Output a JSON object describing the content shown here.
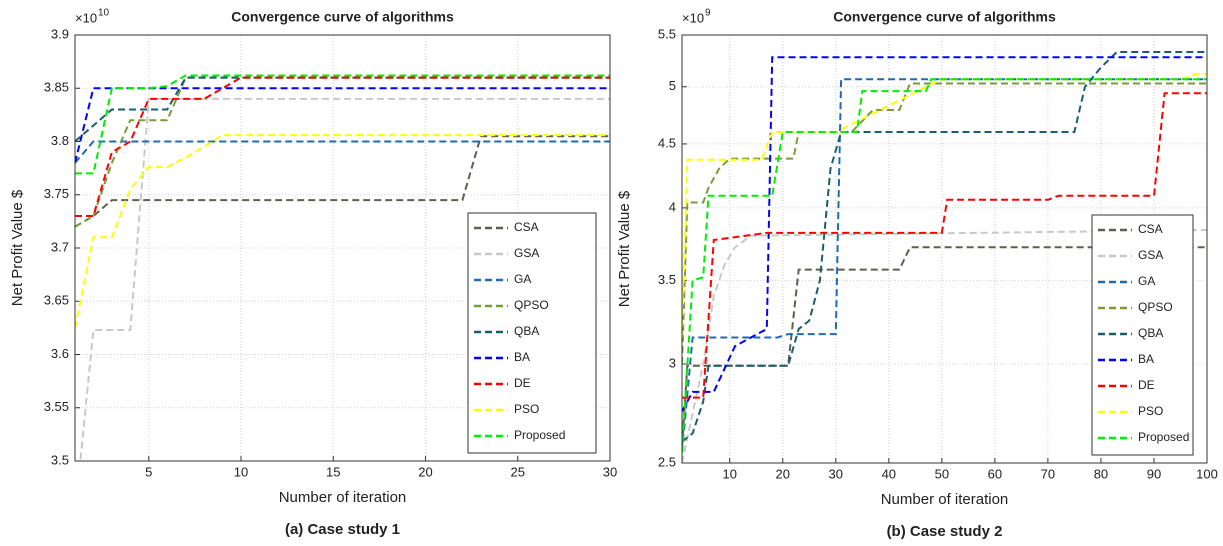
{
  "chart_data": [
    {
      "type": "line",
      "step_style": "dashed",
      "title": "Convergence curve of algorithms",
      "xlabel": "Number of iteration",
      "ylabel": "Net Profit Value $",
      "y_multiplier": {
        "base": "×10",
        "exponent": "10"
      },
      "caption": "(a)  Case study 1",
      "xlim": [
        1,
        30
      ],
      "xticks": [
        5,
        10,
        15,
        20,
        25,
        30
      ],
      "ylim": [
        3.5,
        3.9
      ],
      "yticks": [
        3.5,
        3.55,
        3.6,
        3.65,
        3.7,
        3.75,
        3.8,
        3.85,
        3.9
      ],
      "yscale": "linear",
      "grid": true,
      "legend": "lower right",
      "series": [
        {
          "name": "CSA",
          "color": "#5f5f4f",
          "x": [
            1,
            2,
            3,
            22,
            23,
            30
          ],
          "values": [
            3.72,
            3.73,
            3.745,
            3.745,
            3.805,
            3.805
          ]
        },
        {
          "name": "GSA",
          "color": "#c8c8c8",
          "x": [
            1,
            2,
            4,
            5,
            30
          ],
          "values": [
            3.45,
            3.623,
            3.623,
            3.84,
            3.84
          ]
        },
        {
          "name": "GA",
          "color": "#1f6bb0",
          "x": [
            1,
            2,
            30
          ],
          "values": [
            3.78,
            3.8,
            3.8
          ]
        },
        {
          "name": "QPSO",
          "color": "#7a9a3a",
          "x": [
            1,
            2,
            3,
            4,
            6,
            7,
            30
          ],
          "values": [
            3.72,
            3.73,
            3.78,
            3.82,
            3.82,
            3.86,
            3.86
          ]
        },
        {
          "name": "QBA",
          "color": "#1a5e6e",
          "x": [
            1,
            2,
            3,
            6,
            7,
            30
          ],
          "values": [
            3.8,
            3.815,
            3.83,
            3.83,
            3.86,
            3.86
          ]
        },
        {
          "name": "BA",
          "color": "#0000ff",
          "x": [
            1,
            2,
            30
          ],
          "values": [
            3.78,
            3.85,
            3.85
          ]
        },
        {
          "name": "DE",
          "color": "#ff0000",
          "x": [
            1,
            2,
            3,
            4,
            5,
            8,
            10,
            30
          ],
          "values": [
            3.73,
            3.73,
            3.79,
            3.8,
            3.84,
            3.84,
            3.86,
            3.86
          ]
        },
        {
          "name": "PSO",
          "color": "#ffff00",
          "x": [
            1,
            2,
            3,
            4,
            5,
            6,
            7,
            8,
            9,
            30
          ],
          "values": [
            3.625,
            3.71,
            3.71,
            3.755,
            3.776,
            3.776,
            3.785,
            3.795,
            3.806,
            3.806
          ]
        },
        {
          "name": "Proposed",
          "color": "#00ee00",
          "x": [
            1,
            2,
            3,
            5,
            6,
            7,
            30
          ],
          "values": [
            3.77,
            3.77,
            3.85,
            3.85,
            3.852,
            3.862,
            3.862
          ]
        }
      ]
    },
    {
      "type": "line",
      "step_style": "dashed",
      "title": "Convergence curve of algorithms",
      "xlabel": "Number of iteration",
      "ylabel": "Net Profit Value $",
      "y_multiplier": {
        "base": "×10",
        "exponent": "9"
      },
      "caption": "(b)  Case study 2",
      "xlim": [
        1,
        100
      ],
      "xticks": [
        10,
        20,
        30,
        40,
        50,
        60,
        70,
        80,
        90,
        100
      ],
      "ylim": [
        2.5,
        5.5
      ],
      "yticks": [
        2.5,
        3,
        3.5,
        4,
        4.5,
        5,
        5.5
      ],
      "yscale": "log",
      "grid": true,
      "legend": "lower right",
      "series": [
        {
          "name": "CSA",
          "color": "#5f5f4f",
          "x": [
            1,
            2,
            21,
            23,
            42,
            44,
            100
          ],
          "values": [
            2.57,
            2.99,
            2.99,
            3.57,
            3.57,
            3.72,
            3.72
          ]
        },
        {
          "name": "GSA",
          "color": "#c8c8c8",
          "x": [
            1,
            5,
            7,
            9,
            11,
            14,
            100
          ],
          "values": [
            2.5,
            3.0,
            3.4,
            3.6,
            3.72,
            3.8,
            3.84
          ]
        },
        {
          "name": "GA",
          "color": "#1f6bb0",
          "x": [
            1,
            3,
            19,
            21,
            30,
            31,
            100
          ],
          "values": [
            2.55,
            3.15,
            3.15,
            3.17,
            3.17,
            5.07,
            5.07
          ]
        },
        {
          "name": "QPSO",
          "color": "#7a9a3a",
          "x": [
            1,
            2,
            5,
            6,
            8,
            10,
            22,
            23,
            33,
            37,
            42,
            44,
            100
          ],
          "values": [
            3.0,
            4.04,
            4.04,
            4.15,
            4.3,
            4.38,
            4.38,
            4.6,
            4.6,
            4.79,
            4.79,
            5.03,
            5.03
          ]
        },
        {
          "name": "QBA",
          "color": "#1a5e6e",
          "x": [
            1,
            3,
            5,
            6,
            21,
            23,
            25,
            27,
            29,
            31,
            75,
            77,
            80,
            83,
            100
          ],
          "values": [
            2.6,
            2.64,
            2.8,
            2.99,
            2.99,
            3.2,
            3.25,
            3.5,
            4.3,
            4.6,
            4.6,
            5.0,
            5.18,
            5.33,
            5.33
          ]
        },
        {
          "name": "BA",
          "color": "#0000ff",
          "x": [
            1,
            3,
            7,
            11,
            14,
            17,
            18,
            100
          ],
          "values": [
            2.75,
            2.85,
            2.85,
            3.1,
            3.15,
            3.2,
            5.28,
            5.28
          ]
        },
        {
          "name": "DE",
          "color": "#ff0000",
          "x": [
            1,
            5,
            7,
            17,
            50,
            51,
            70,
            72,
            90,
            92,
            100
          ],
          "values": [
            2.82,
            2.82,
            3.77,
            3.82,
            3.82,
            4.06,
            4.06,
            4.09,
            4.09,
            4.94,
            4.94
          ]
        },
        {
          "name": "PSO",
          "color": "#ffff00",
          "x": [
            1,
            2,
            16,
            18,
            30,
            50,
            95,
            98,
            100
          ],
          "values": [
            3.15,
            4.37,
            4.37,
            4.6,
            4.6,
            5.07,
            5.07,
            5.12,
            5.12
          ]
        },
        {
          "name": "Proposed",
          "color": "#00ee00",
          "x": [
            1,
            3,
            5,
            6,
            18,
            20,
            34,
            35,
            47,
            48,
            100
          ],
          "values": [
            2.55,
            3.5,
            3.52,
            4.09,
            4.09,
            4.6,
            4.6,
            4.96,
            4.96,
            5.07,
            5.07
          ]
        }
      ]
    }
  ]
}
